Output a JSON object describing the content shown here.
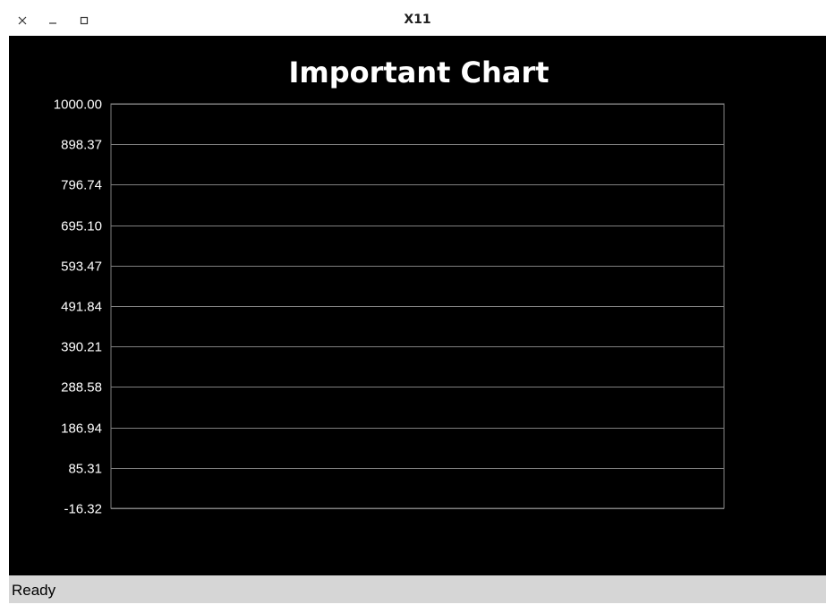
{
  "window": {
    "title": "X11",
    "icons": {
      "close": "close-icon",
      "minimize": "minimize-icon",
      "maximize": "maximize-icon"
    }
  },
  "status": {
    "text": "Ready"
  },
  "colors": {
    "chart_background": "#000000",
    "grid": "#808080",
    "text": "#ffffff",
    "statusbar": "#d6d6d6"
  },
  "chart_data": {
    "type": "line",
    "title": "Important Chart",
    "xlabel": "",
    "ylabel": "",
    "ylim": [
      -16.32,
      1000.0
    ],
    "yticks": [
      "1000.00",
      "898.37",
      "796.74",
      "695.10",
      "593.47",
      "491.84",
      "390.21",
      "288.58",
      "186.94",
      "85.31",
      "-16.32"
    ],
    "grid": true,
    "series": []
  }
}
